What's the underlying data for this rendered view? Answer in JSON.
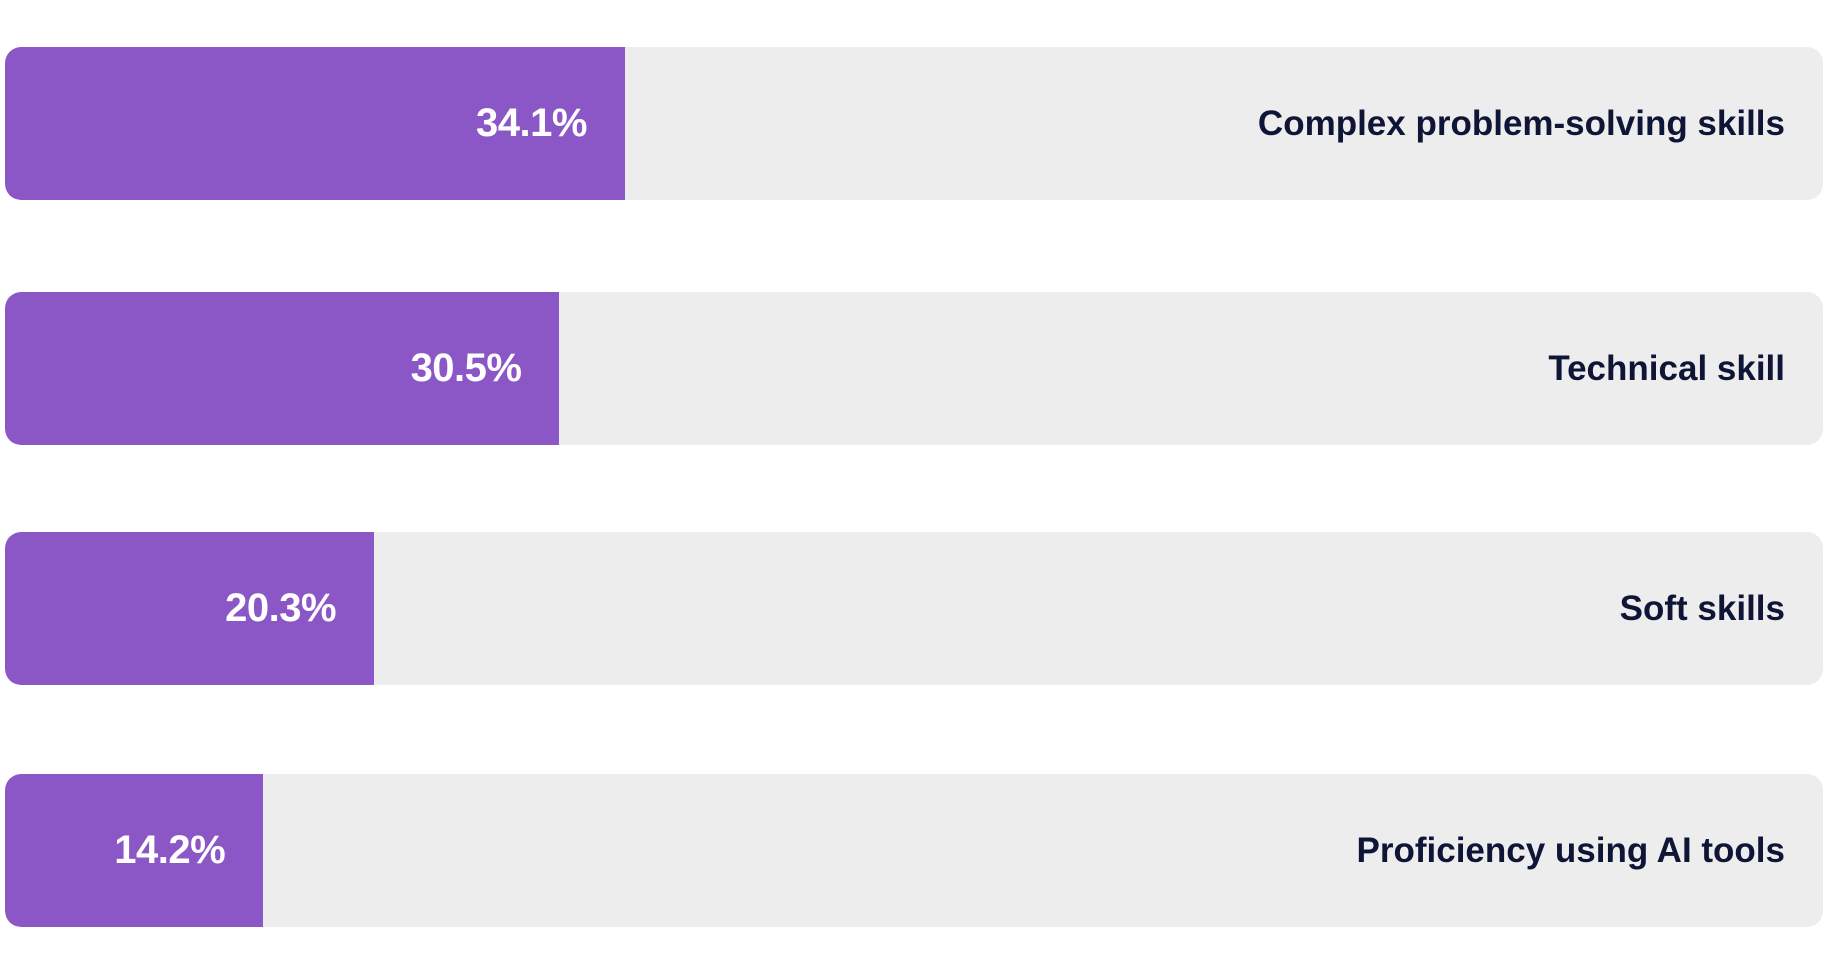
{
  "colors": {
    "bar": "#8b57c6",
    "track": "#ededed",
    "value_text": "#ffffff",
    "label_text": "#0f1536"
  },
  "chart_data": {
    "type": "bar",
    "orientation": "horizontal",
    "categories": [
      "Complex problem-solving skills",
      "Technical skill",
      "Soft skills",
      "Proficiency using AI tools"
    ],
    "values": [
      34.1,
      30.5,
      20.3,
      14.2
    ],
    "value_labels": [
      "34.1%",
      "30.5%",
      "20.3%",
      "14.2%"
    ],
    "xlim": [
      0,
      100
    ],
    "unit": "%",
    "title": "",
    "xlabel": "",
    "ylabel": "",
    "grid": false,
    "legend": "none"
  }
}
